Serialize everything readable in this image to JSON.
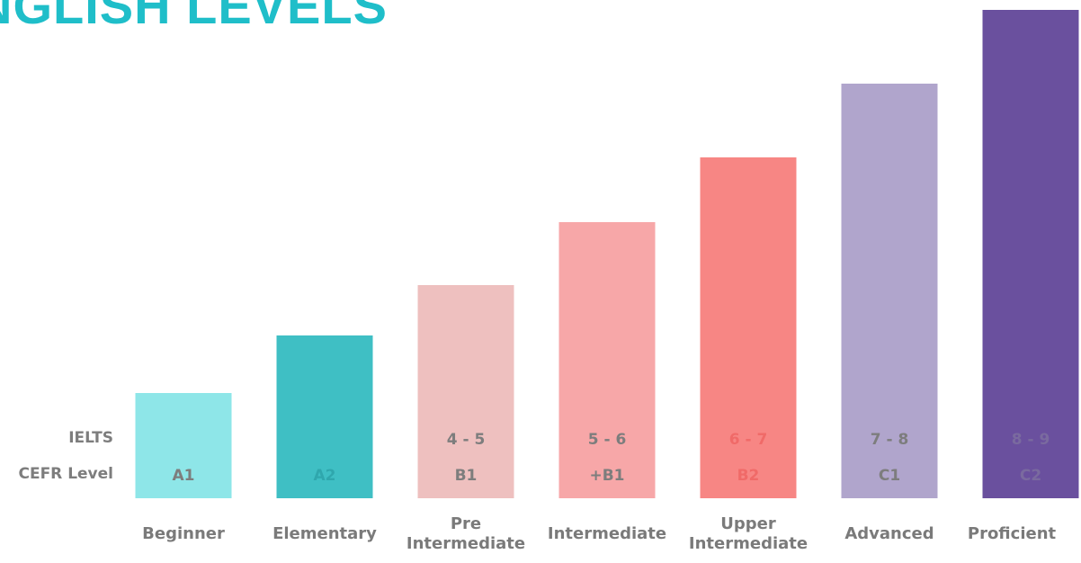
{
  "title": "NGLISH LEVELS",
  "row_labels": {
    "ielts": "IELTS",
    "cefr": "CEFR Level"
  },
  "chart_data": {
    "type": "bar",
    "categories": [
      "Beginner",
      "Elementary",
      "Pre\nIntermediate",
      "Intermediate",
      "Upper\nIntermediate",
      "Advanced",
      "Proficient"
    ],
    "values": [
      1,
      2,
      3,
      4,
      5,
      6,
      7
    ],
    "ielts": [
      "",
      "",
      "4 - 5",
      "5 - 6",
      "6 - 7",
      "7 - 8",
      "8 - 9"
    ],
    "cefr": [
      "A1",
      "A2",
      "B1",
      "+B1",
      "B2",
      "C1",
      "C2"
    ],
    "colors": [
      "#8ee6e8",
      "#3fbfc4",
      "#eec0bf",
      "#f7a7a8",
      "#f78684",
      "#b0a5cc",
      "#6a509e"
    ],
    "ylim": [
      0,
      7
    ],
    "xlabel": "",
    "ylabel": "",
    "grid": false,
    "legend": "none"
  }
}
